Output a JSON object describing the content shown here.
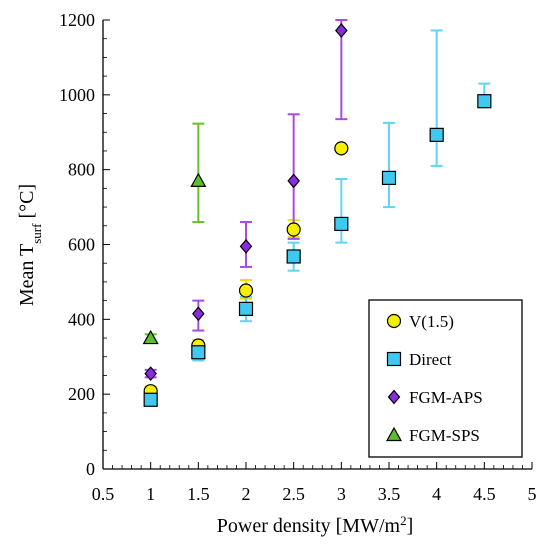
{
  "chart_data": {
    "type": "scatter",
    "xlabel_main": "Power density [MW/m",
    "xlabel_sup": "2",
    "xlabel_tail": "]",
    "ylabel_main": "Mean T",
    "ylabel_sub": "surf",
    "ylabel_tail": " [°C]",
    "xlim": [
      0.5,
      5
    ],
    "ylim": [
      0,
      1200
    ],
    "xticks": [
      0.5,
      1,
      1.5,
      2,
      2.5,
      3,
      3.5,
      4,
      4.5,
      5
    ],
    "xtick_labels": [
      "0.5",
      "1",
      "1.5",
      "2",
      "2.5",
      "3",
      "3.5",
      "4",
      "4.5",
      "5"
    ],
    "yticks": [
      0,
      200,
      400,
      600,
      800,
      1000,
      1200
    ],
    "ytick_labels": [
      "0",
      "200",
      "400",
      "600",
      "800",
      "1000",
      "1200"
    ],
    "grid": false,
    "legend_position": "bottom-right",
    "series": [
      {
        "name": "V(1.5)",
        "marker": "circle",
        "fill": "#f5f000",
        "error_color": "#f0e000",
        "points": [
          {
            "x": 1,
            "y": 208,
            "err_low": 195,
            "err_high": 220
          },
          {
            "x": 1.5,
            "y": 330,
            "err_low": 315,
            "err_high": 345
          },
          {
            "x": 2,
            "y": 477,
            "err_low": 455,
            "err_high": 505
          },
          {
            "x": 2.5,
            "y": 640,
            "err_low": 620,
            "err_high": 665
          },
          {
            "x": 3,
            "y": 857,
            "err_low": 857,
            "err_high": 857
          }
        ]
      },
      {
        "name": "Direct",
        "marker": "square",
        "fill": "#3fc8f0",
        "error_color": "#60d4f4",
        "points": [
          {
            "x": 1,
            "y": 185,
            "err_low": 175,
            "err_high": 200
          },
          {
            "x": 1.5,
            "y": 312,
            "err_low": 290,
            "err_high": 335
          },
          {
            "x": 2,
            "y": 428,
            "err_low": 395,
            "err_high": 460
          },
          {
            "x": 2.5,
            "y": 568,
            "err_low": 530,
            "err_high": 605
          },
          {
            "x": 3,
            "y": 655,
            "err_low": 605,
            "err_high": 775
          },
          {
            "x": 3.5,
            "y": 778,
            "err_low": 700,
            "err_high": 925
          },
          {
            "x": 4,
            "y": 893,
            "err_low": 810,
            "err_high": 1172
          },
          {
            "x": 4.5,
            "y": 983,
            "err_low": 975,
            "err_high": 1030
          }
        ]
      },
      {
        "name": "FGM-APS",
        "marker": "diamond",
        "fill": "#8a2be2",
        "error_color": "#a64ce0",
        "points": [
          {
            "x": 1,
            "y": 255,
            "err_low": 245,
            "err_high": 265
          },
          {
            "x": 1.5,
            "y": 415,
            "err_low": 370,
            "err_high": 450
          },
          {
            "x": 2,
            "y": 595,
            "err_low": 540,
            "err_high": 660
          },
          {
            "x": 2.5,
            "y": 770,
            "err_low": 615,
            "err_high": 948
          },
          {
            "x": 3,
            "y": 1172,
            "err_low": 935,
            "err_high": 1200
          }
        ]
      },
      {
        "name": "FGM-SPS",
        "marker": "triangle",
        "fill": "#5cbf2a",
        "error_color": "#66c02c",
        "points": [
          {
            "x": 1,
            "y": 350,
            "err_low": 340,
            "err_high": 360
          },
          {
            "x": 1.5,
            "y": 770,
            "err_low": 660,
            "err_high": 923
          }
        ]
      }
    ]
  }
}
